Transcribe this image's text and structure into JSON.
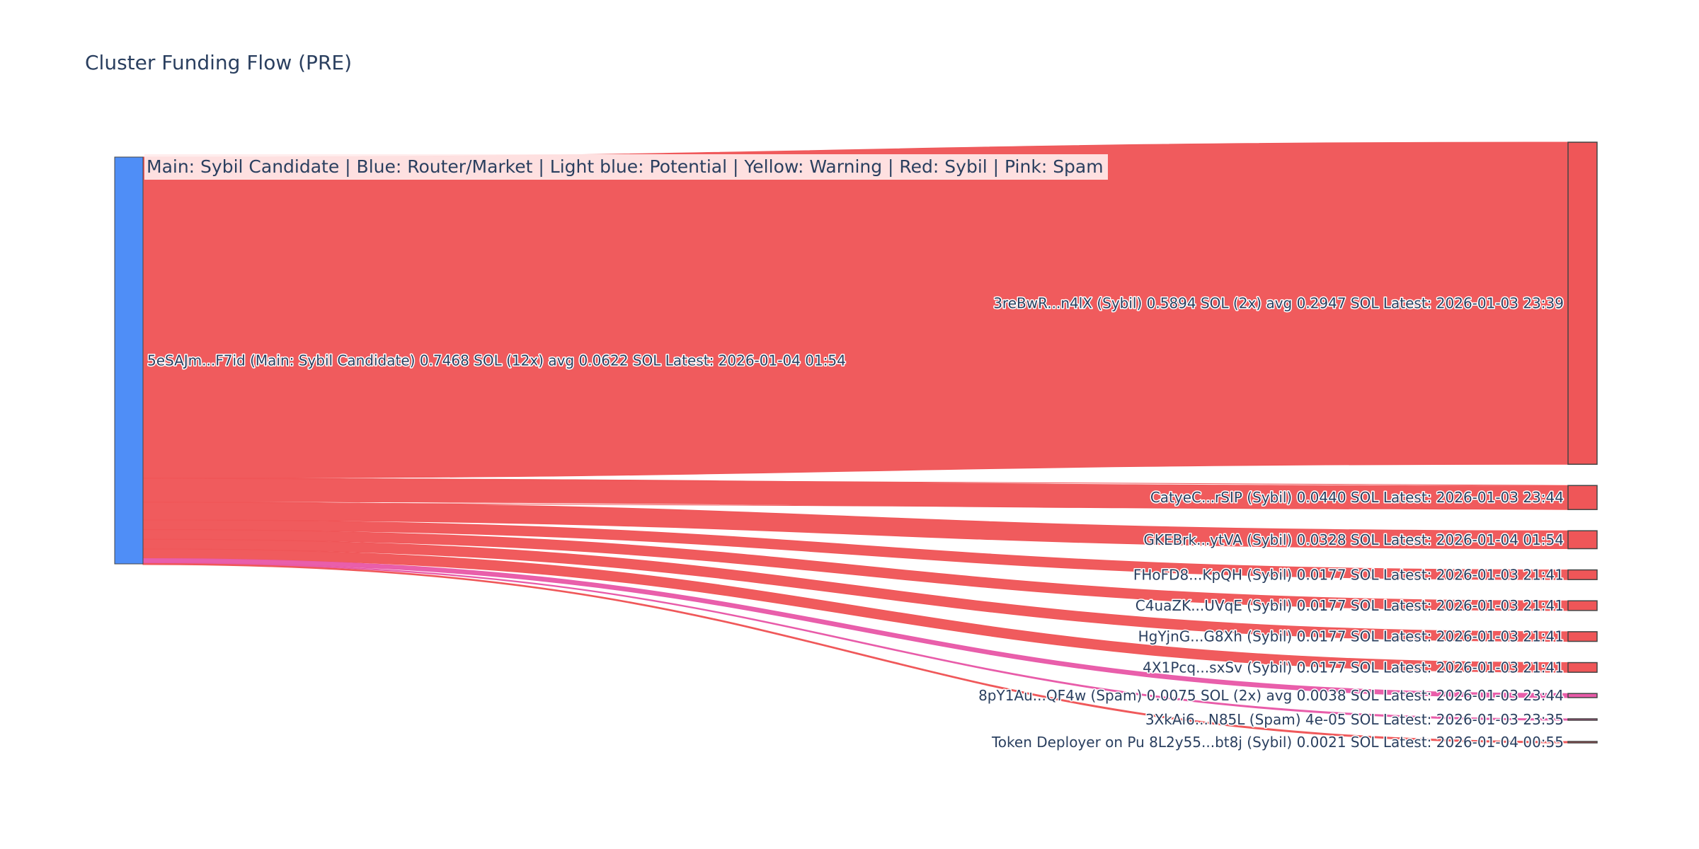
{
  "chart_data": {
    "type": "sankey",
    "title": "Cluster Funding Flow (PRE)",
    "annotation": "Main: Sybil Candidate  |  Blue: Router/Market | Light blue: Potential | Yellow: Warning | Red: Sybil | Pink: Spam",
    "colors": {
      "router": "#4f8ef7",
      "sybil": "#ef5658",
      "spam": "#e85aa8",
      "node_border": "#444444"
    },
    "source": {
      "label": "5eSAJm...F7id (Main: Sybil Candidate) 0.7468 SOL (12x) avg 0.0622 SOL Latest: 2026-01-04 01:54",
      "value": 0.7468,
      "color": "#4f8ef7"
    },
    "targets": [
      {
        "label": "3reBwR...n4lX (Sybil) 0.5894 SOL (2x) avg 0.2947 SOL Latest: 2026-01-03 23:39",
        "value": 0.5894,
        "color": "#ef5658"
      },
      {
        "label": "CatyeC...rSIP (Sybil) 0.0440 SOL Latest: 2026-01-03 23:44",
        "value": 0.044,
        "color": "#ef5658"
      },
      {
        "label": "GKEBrk...ytVA (Sybil) 0.0328 SOL Latest: 2026-01-04 01:54",
        "value": 0.0328,
        "color": "#ef5658"
      },
      {
        "label": "FHoFD8...KpQH (Sybil) 0.0177 SOL Latest: 2026-01-03 21:41",
        "value": 0.0177,
        "color": "#ef5658"
      },
      {
        "label": "C4uaZK...UVqE (Sybil) 0.0177 SOL Latest: 2026-01-03 21:41",
        "value": 0.0177,
        "color": "#ef5658"
      },
      {
        "label": "HgYjnG...G8Xh (Sybil) 0.0177 SOL Latest: 2026-01-03 21:41",
        "value": 0.0177,
        "color": "#ef5658"
      },
      {
        "label": "4X1Pcq...sxSv (Sybil) 0.0177 SOL Latest: 2026-01-03 21:41",
        "value": 0.0177,
        "color": "#ef5658"
      },
      {
        "label": "8pY1Au...QF4w (Spam) 0.0075 SOL (2x) avg 0.0038 SOL Latest: 2026-01-03 23:44",
        "value": 0.0075,
        "color": "#e85aa8"
      },
      {
        "label": "3XkAi6...N85L (Spam) 4e-05 SOL Latest: 2026-01-03 23:35",
        "value": 4e-05,
        "color": "#e85aa8"
      },
      {
        "label": "Token Deployer on Pu 8L2y55...bt8j (Sybil) 0.0021 SOL Latest: 2026-01-04 00:55",
        "value": 0.0021,
        "color": "#ef5658"
      }
    ]
  }
}
